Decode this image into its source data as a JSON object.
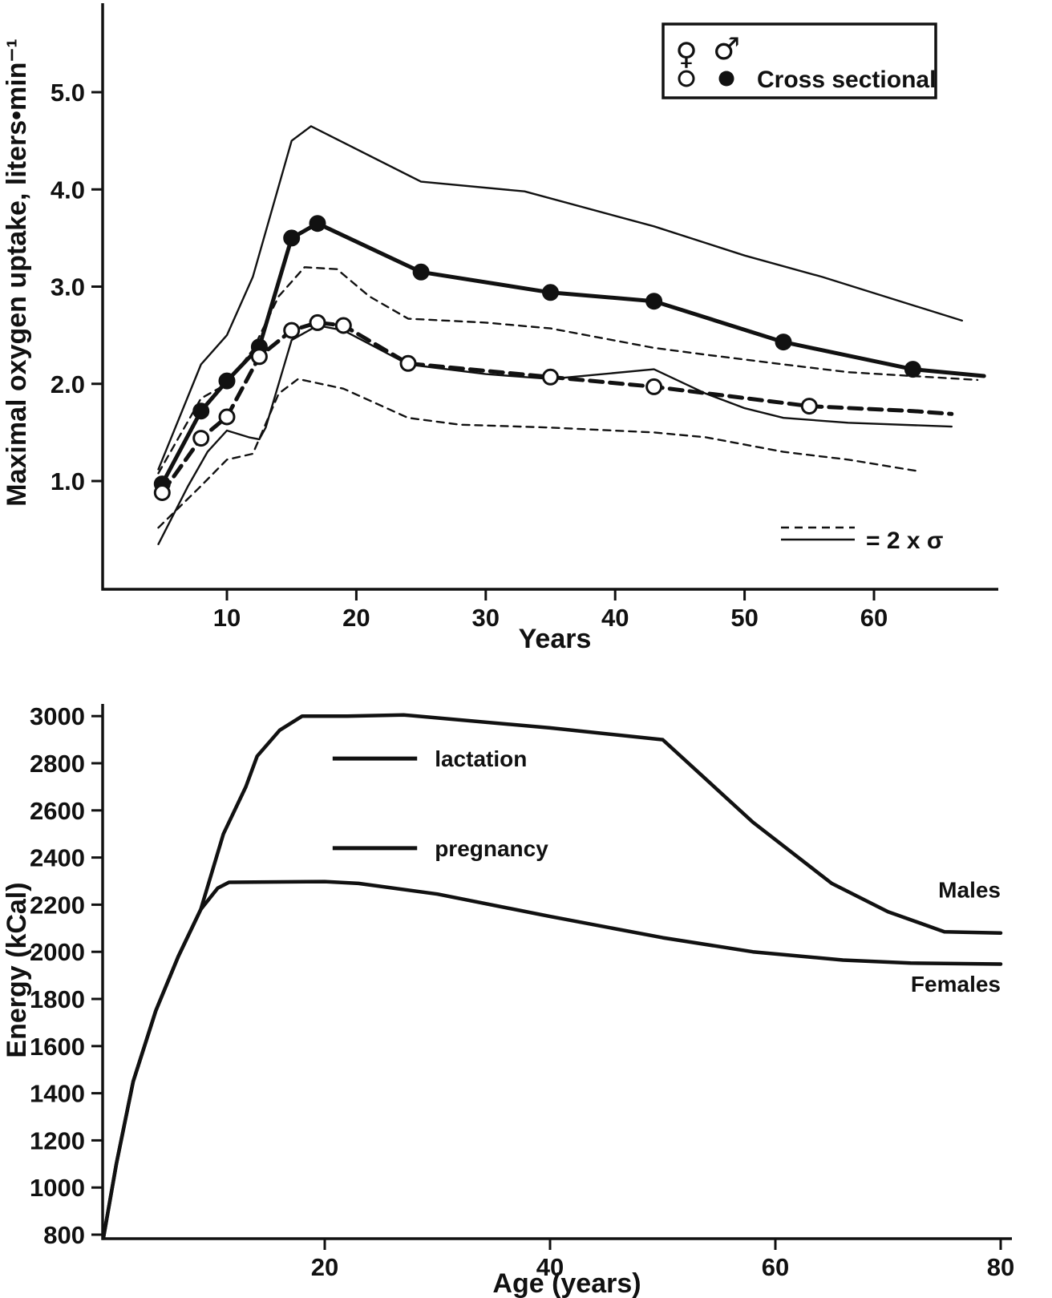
{
  "figure": {
    "background": "#ffffff",
    "ink_color": "#111111"
  },
  "chart_data": [
    {
      "type": "line",
      "title": "",
      "xlabel": "Years",
      "ylabel": "Maximal oxygen uptake, liters•min⁻¹",
      "xlim": [
        0,
        69
      ],
      "ylim": [
        0,
        5.9
      ],
      "grid": false,
      "xticks": [
        10,
        20,
        30,
        40,
        50,
        60
      ],
      "xtick_labels": [
        "10",
        "20",
        "30",
        "40",
        "50",
        "60"
      ],
      "yticks": [
        1.0,
        2.0,
        3.0,
        4.0,
        5.0
      ],
      "ytick_labels": [
        "1.0",
        "2.0",
        "3.0",
        "4.0",
        "5.0"
      ],
      "legend": {
        "position": "top-right",
        "female_symbol": "♀",
        "male_symbol": "♂",
        "cross_sectional_label": "Cross sectional",
        "sigma_label": "= 2 x σ"
      },
      "series": [
        {
          "name": "males-upper-2sigma",
          "style": "thin-solid",
          "marker": null,
          "x": [
            4.7,
            8,
            10,
            12,
            15,
            16.5,
            25,
            33,
            43,
            50,
            56,
            66.8
          ],
          "y": [
            1.12,
            2.2,
            2.5,
            3.1,
            4.5,
            4.65,
            4.08,
            3.98,
            3.62,
            3.32,
            3.1,
            2.65
          ]
        },
        {
          "name": "males-lower-2sigma",
          "style": "thin-solid",
          "marker": null,
          "x": [
            4.7,
            7,
            8.5,
            10,
            11.7,
            12.5,
            13,
            15,
            17,
            19,
            24,
            30,
            35,
            43,
            47,
            50,
            53,
            58,
            66
          ],
          "y": [
            0.35,
            0.95,
            1.3,
            1.52,
            1.45,
            1.43,
            1.55,
            2.45,
            2.6,
            2.55,
            2.2,
            2.1,
            2.05,
            2.15,
            1.9,
            1.75,
            1.65,
            1.6,
            1.56
          ]
        },
        {
          "name": "females-upper-2sigma",
          "style": "thin-dashed",
          "marker": null,
          "x": [
            4.7,
            8,
            10,
            12,
            14,
            16,
            18.5,
            21,
            24,
            30,
            35,
            43,
            47,
            53,
            58,
            68
          ],
          "y": [
            1.08,
            1.85,
            2.0,
            2.35,
            2.9,
            3.2,
            3.18,
            2.9,
            2.67,
            2.63,
            2.57,
            2.37,
            2.3,
            2.2,
            2.12,
            2.04
          ]
        },
        {
          "name": "females-lower-2sigma",
          "style": "thin-dashed",
          "marker": null,
          "x": [
            4.7,
            8,
            10,
            12,
            14,
            15.5,
            19,
            24,
            28,
            35,
            43,
            47,
            53,
            58,
            63.5
          ],
          "y": [
            0.52,
            0.95,
            1.22,
            1.28,
            1.9,
            2.05,
            1.95,
            1.65,
            1.58,
            1.55,
            1.5,
            1.45,
            1.3,
            1.22,
            1.1
          ]
        },
        {
          "name": "males-cross-sectional-mean",
          "style": "thick-solid",
          "marker": "filled",
          "marker_count": 11,
          "x": [
            5,
            8,
            10,
            12.5,
            15,
            17,
            25,
            35,
            43,
            53,
            63,
            68.5
          ],
          "y": [
            0.97,
            1.72,
            2.03,
            2.38,
            3.5,
            3.65,
            3.15,
            2.94,
            2.85,
            2.43,
            2.15,
            2.08
          ]
        },
        {
          "name": "females-cross-sectional-mean",
          "style": "thick-dashed",
          "marker": "open",
          "marker_count": 11,
          "x": [
            5,
            8,
            10,
            12.5,
            15,
            17,
            19,
            24,
            35,
            43,
            55,
            63,
            66
          ],
          "y": [
            0.88,
            1.44,
            1.66,
            2.28,
            2.55,
            2.63,
            2.6,
            2.21,
            2.07,
            1.97,
            1.77,
            1.72,
            1.69
          ]
        }
      ]
    },
    {
      "type": "line",
      "title": "",
      "xlabel": "Age (years)",
      "ylabel": "Energy (kCal)",
      "xlim": [
        0,
        82
      ],
      "ylim": [
        800,
        3050
      ],
      "grid": false,
      "xticks": [
        20,
        40,
        60,
        80
      ],
      "xtick_labels": [
        "20",
        "40",
        "60",
        "80"
      ],
      "yticks": [
        800,
        1000,
        1200,
        1400,
        1600,
        1800,
        2000,
        2200,
        2400,
        2600,
        2800,
        3000
      ],
      "ytick_labels": [
        "800",
        "1000",
        "1200",
        "1400",
        "1600",
        "1800",
        "2000",
        "2200",
        "2400",
        "2600",
        "2800",
        "3000"
      ],
      "annotations": [
        {
          "label": "lactation",
          "x1": 20.7,
          "x2": 28.2,
          "y": 2820
        },
        {
          "label": "pregnancy",
          "x1": 20.7,
          "x2": 28.2,
          "y": 2440
        }
      ],
      "end_labels": [
        {
          "text": "Males",
          "x": 80,
          "y": 2230
        },
        {
          "text": "Females",
          "x": 80,
          "y": 1830
        }
      ],
      "series": [
        {
          "name": "males-energy",
          "style": "bold-solid",
          "marker": null,
          "x": [
            0.35,
            1.5,
            3,
            5,
            7,
            9,
            11,
            13,
            14,
            16,
            18,
            22,
            27,
            40,
            50,
            58,
            65,
            70,
            75,
            80
          ],
          "y": [
            785,
            1100,
            1450,
            1750,
            1980,
            2180,
            2500,
            2700,
            2830,
            2940,
            3000,
            3000,
            3005,
            2950,
            2900,
            2550,
            2290,
            2170,
            2085,
            2080
          ]
        },
        {
          "name": "females-energy",
          "style": "bold-solid",
          "marker": null,
          "x": [
            0.35,
            1.5,
            3,
            5,
            7,
            9,
            10.5,
            11.5,
            20,
            23,
            30,
            40,
            50,
            58,
            66,
            72,
            80
          ],
          "y": [
            785,
            1100,
            1450,
            1750,
            1980,
            2180,
            2270,
            2295,
            2298,
            2290,
            2245,
            2150,
            2060,
            2000,
            1965,
            1952,
            1948
          ]
        }
      ]
    }
  ]
}
